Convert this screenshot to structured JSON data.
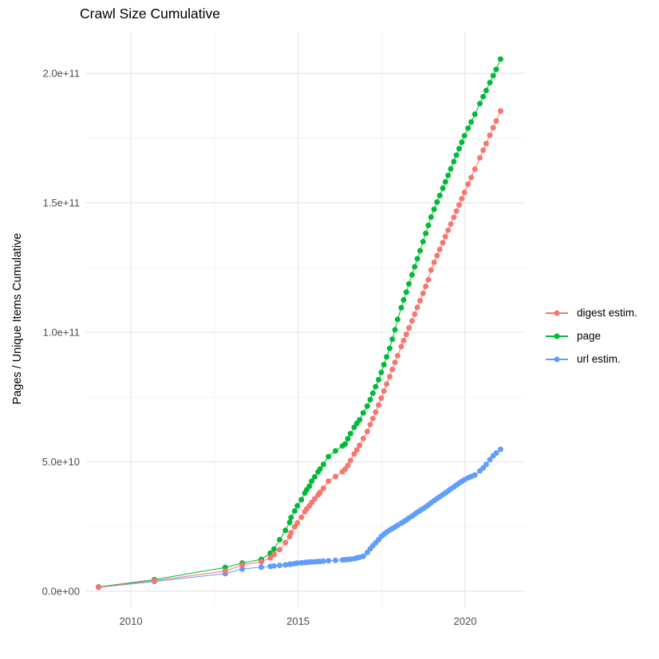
{
  "title": "Crawl Size Cumulative",
  "y_axis": {
    "label": "Pages / Unique Items Cumulative",
    "ticks": [
      {
        "label": "0.0e+00",
        "value_billions": 0
      },
      {
        "label": "5.0e+10",
        "value_billions": 50
      },
      {
        "label": "1.0e+11",
        "value_billions": 100
      },
      {
        "label": "1.5e+11",
        "value_billions": 150
      },
      {
        "label": "2.0e+11",
        "value_billions": 200
      }
    ],
    "minor_values_billions": [
      25,
      75,
      125,
      175
    ]
  },
  "x_axis": {
    "ticks": [
      {
        "label": "2010",
        "value": 2010
      },
      {
        "label": "2015",
        "value": 2015
      },
      {
        "label": "2020",
        "value": 2020
      }
    ],
    "minor_values": [
      2012.5,
      2017.5
    ]
  },
  "legend": {
    "items": [
      {
        "label": "digest estim.",
        "color": "#F8766D"
      },
      {
        "label": "page",
        "color": "#00BA38"
      },
      {
        "label": "url estim.",
        "color": "#619CFF"
      }
    ]
  },
  "chart_data": {
    "type": "scatter",
    "title": "Crawl Size Cumulative",
    "xlabel": "",
    "ylabel": "Pages / Unique Items Cumulative",
    "xlim": [
      2008.66,
      2021.79
    ],
    "ylim_billions": [
      -6.15,
      216
    ],
    "grid": true,
    "legend_position": "right",
    "x_years": [
      2009.03,
      2010.7,
      2012.82,
      2013.33,
      2013.9,
      2014.17,
      2014.28,
      2014.45,
      2014.62,
      2014.75,
      2014.79,
      2014.9,
      2014.98,
      2015.1,
      2015.2,
      2015.26,
      2015.34,
      2015.41,
      2015.5,
      2015.6,
      2015.66,
      2015.76,
      2015.91,
      2016.12,
      2016.33,
      2016.41,
      2016.49,
      2016.57,
      2016.68,
      2016.76,
      2016.84,
      2016.95,
      2017.07,
      2017.16,
      2017.24,
      2017.32,
      2017.41,
      2017.49,
      2017.57,
      2017.65,
      2017.74,
      2017.82,
      2017.9,
      2017.98,
      2018.09,
      2018.16,
      2018.24,
      2018.32,
      2018.41,
      2018.49,
      2018.57,
      2018.65,
      2018.74,
      2018.82,
      2018.9,
      2018.98,
      2019.07,
      2019.16,
      2019.24,
      2019.33,
      2019.41,
      2019.49,
      2019.57,
      2019.66,
      2019.74,
      2019.82,
      2019.9,
      2019.98,
      2020.09,
      2020.18,
      2020.29,
      2020.44,
      2020.54,
      2020.63,
      2020.74,
      2020.84,
      2020.93,
      2021.06
    ],
    "series": [
      {
        "name": "url estim.",
        "color": "#619CFF",
        "values_billions": [
          1.5,
          3.8,
          6.8,
          8.6,
          9.3,
          9.6,
          9.8,
          10.0,
          10.2,
          10.4,
          10.5,
          10.7,
          10.9,
          11.0,
          11.1,
          11.2,
          11.3,
          11.3,
          11.4,
          11.5,
          11.5,
          11.6,
          11.8,
          11.9,
          12.1,
          12.2,
          12.3,
          12.4,
          12.6,
          12.9,
          13.1,
          13.5,
          15.0,
          16.4,
          17.6,
          18.7,
          19.9,
          21.2,
          22.0,
          22.8,
          23.6,
          24.2,
          24.8,
          25.5,
          26.3,
          26.9,
          27.5,
          28.3,
          29.0,
          29.8,
          30.5,
          31.2,
          31.9,
          32.6,
          33.3,
          34.2,
          35.0,
          35.8,
          36.5,
          37.3,
          38.0,
          38.7,
          39.5,
          40.3,
          41.0,
          41.8,
          42.4,
          43.1,
          43.8,
          44.3,
          44.9,
          46.5,
          47.6,
          49.0,
          50.8,
          52.3,
          53.4,
          54.8
        ]
      },
      {
        "name": "page",
        "color": "#00BA38",
        "values_billions": [
          1.7,
          4.5,
          9.2,
          10.9,
          12.3,
          14.7,
          16.3,
          19.9,
          23.5,
          26.6,
          28.5,
          31.0,
          33.0,
          35.4,
          37.9,
          39.2,
          40.6,
          42.5,
          44.2,
          46.1,
          47.2,
          49.0,
          52.0,
          54.2,
          56.1,
          56.9,
          58.9,
          60.9,
          63.3,
          64.8,
          66.2,
          68.9,
          71.5,
          74.0,
          76.5,
          79.0,
          81.7,
          84.5,
          87.5,
          90.5,
          93.8,
          97.3,
          101.0,
          105.0,
          109.5,
          112.5,
          115.5,
          118.7,
          122.2,
          125.3,
          128.4,
          131.5,
          135.0,
          138.2,
          141.3,
          144.5,
          147.5,
          150.3,
          152.8,
          155.6,
          158.1,
          160.6,
          163.1,
          165.9,
          168.4,
          170.9,
          173.4,
          175.9,
          178.8,
          181.2,
          184.2,
          188.3,
          191.0,
          193.4,
          196.4,
          199.1,
          201.5,
          205.5
        ]
      },
      {
        "name": "digest estim.",
        "color": "#F8766D",
        "values_billions": [
          1.6,
          4.1,
          7.8,
          10.2,
          11.4,
          12.9,
          14.2,
          16.1,
          18.8,
          21.1,
          22.6,
          24.9,
          26.4,
          28.6,
          30.7,
          31.8,
          33.0,
          34.3,
          35.7,
          37.2,
          38.2,
          39.8,
          42.5,
          44.3,
          46.2,
          47.1,
          48.6,
          50.5,
          53.0,
          54.6,
          56.4,
          59.0,
          61.7,
          64.4,
          66.7,
          69.2,
          71.9,
          74.6,
          77.3,
          80.0,
          82.9,
          85.7,
          88.4,
          91.0,
          94.5,
          96.8,
          99.2,
          101.7,
          104.4,
          107.0,
          109.6,
          112.2,
          115.0,
          117.7,
          120.3,
          124.0,
          127.0,
          129.6,
          132.0,
          134.6,
          137.0,
          139.4,
          141.8,
          144.4,
          146.8,
          149.2,
          151.6,
          154.0,
          157.2,
          159.8,
          163.0,
          167.4,
          170.3,
          172.9,
          176.1,
          179.0,
          181.6,
          185.5
        ]
      }
    ]
  },
  "colors": {
    "grid_major": "#E6E6E6",
    "grid_minor": "#F0F0F0",
    "axis_text": "#4D4D4D",
    "background": "#FFFFFF"
  }
}
